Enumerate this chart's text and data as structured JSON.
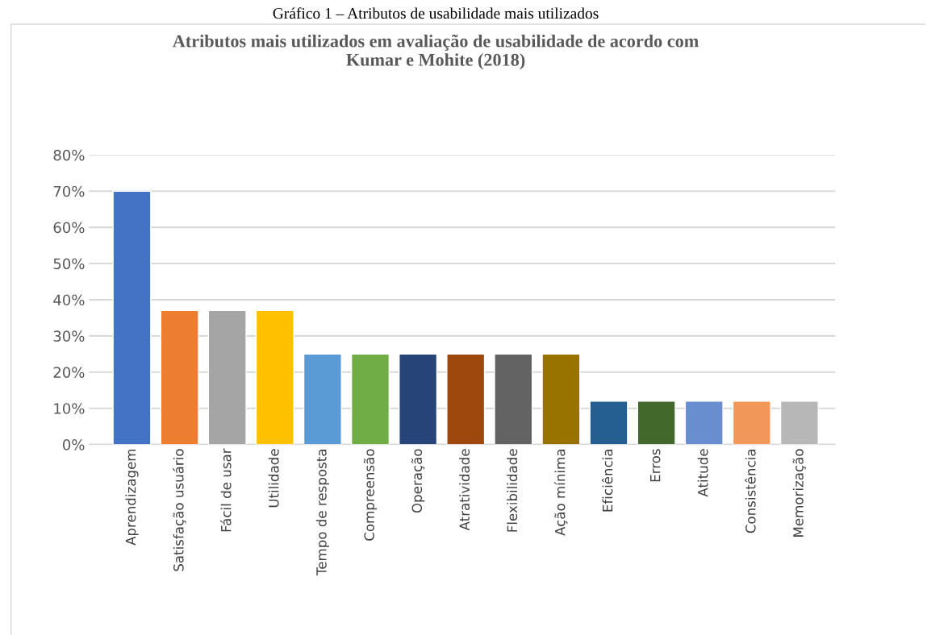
{
  "chart_data": {
    "type": "bar",
    "title": "Atributos mais utilizados em avaliação de usabilidade de acordo com\nKumar e Mohite (2018)",
    "annotations": [
      "Gráfico 1 – Atributos de usabilidade mais utilizados"
    ],
    "categories": [
      "Aprendizagem",
      "Satisfação usuário",
      "Fácil de usar",
      "Utilidade",
      "Tempo de resposta",
      "Compreensão",
      "Operação",
      "Atratividade",
      "Flexibilidade",
      "Ação mínima",
      "Eficiência",
      "Erros",
      "Atitude",
      "Consistência",
      "Memorização"
    ],
    "values": [
      70,
      37,
      37,
      37,
      25,
      25,
      25,
      25,
      25,
      25,
      12,
      12,
      12,
      12,
      12
    ],
    "colors": [
      "#4472c4",
      "#ed7d31",
      "#a5a5a5",
      "#ffc000",
      "#5b9bd5",
      "#70ad47",
      "#264478",
      "#9e480e",
      "#636363",
      "#997300",
      "#255e91",
      "#43682b",
      "#698ed0",
      "#f1975a",
      "#b7b7b7"
    ],
    "ylim": [
      0,
      80
    ],
    "yticks": [
      {
        "value": 0,
        "label": "0%"
      },
      {
        "value": 10,
        "label": "10%"
      },
      {
        "value": 20,
        "label": "20%"
      },
      {
        "value": 30,
        "label": "30%"
      },
      {
        "value": 40,
        "label": "40%"
      },
      {
        "value": 50,
        "label": "50%"
      },
      {
        "value": 60,
        "label": "60%"
      },
      {
        "value": 70,
        "label": "70%"
      },
      {
        "value": 80,
        "label": "80%"
      }
    ],
    "grid": "y",
    "legend": false
  }
}
